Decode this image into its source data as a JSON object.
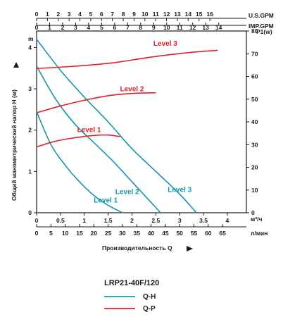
{
  "chart_data": {
    "type": "line",
    "title": "",
    "model": "LRP21-40F/120",
    "xlabel": "Производительность Q",
    "ylabel_left": "Общий манометрический напор H (м)",
    "ylabel_left_unit": "m",
    "ylabel_right": "P1(w)",
    "x_main_unit": "м³/ч",
    "x_lpm_unit": "л/мин",
    "x_usgpm_unit": "U.S.GPM",
    "x_impgpm_unit": "IMP.GPM",
    "xlim": [
      0,
      4.4
    ],
    "ylim_left": [
      0,
      4.4
    ],
    "ylim_right": [
      0,
      80
    ],
    "x_main_ticks": [
      "0",
      "0.5",
      "1",
      "1.5",
      "2",
      "2.5",
      "3",
      "3.5",
      "4"
    ],
    "x_lpm_ticks": [
      "0",
      "5",
      "10",
      "15",
      "20",
      "25",
      "30",
      "35",
      "40",
      "45",
      "50",
      "55",
      "60",
      "65"
    ],
    "x_usgpm_ticks": [
      "0",
      "1",
      "2",
      "3",
      "4",
      "5",
      "6",
      "7",
      "8",
      "9",
      "10",
      "11",
      "12",
      "13",
      "14",
      "15",
      "16"
    ],
    "x_impgpm_ticks": [
      "0",
      "1",
      "2",
      "3",
      "4",
      "5",
      "6",
      "7",
      "8",
      "9",
      "10",
      "11",
      "12",
      "13",
      "14"
    ],
    "y_left_ticks": [
      "0",
      "1",
      "2",
      "3",
      "4"
    ],
    "y_right_ticks": [
      "0",
      "10",
      "20",
      "30",
      "40",
      "50",
      "60",
      "70",
      "80"
    ],
    "qh_series": [
      {
        "name": "Level 1",
        "x": [
          0,
          0.3,
          0.6,
          0.9,
          1.2,
          1.5,
          1.8
        ],
        "y": [
          2.45,
          1.65,
          1.15,
          0.75,
          0.42,
          0.18,
          0
        ]
      },
      {
        "name": "Level 2",
        "x": [
          0,
          0.4,
          0.8,
          1.2,
          1.6,
          2.0,
          2.4,
          2.6
        ],
        "y": [
          3.55,
          2.75,
          2.15,
          1.7,
          1.25,
          0.75,
          0.25,
          0
        ]
      },
      {
        "name": "Level 3",
        "x": [
          0,
          0.5,
          1.0,
          1.5,
          2.0,
          2.5,
          3.0,
          3.35
        ],
        "y": [
          4.2,
          3.45,
          2.8,
          2.2,
          1.55,
          1.0,
          0.45,
          0
        ]
      }
    ],
    "qp_series": [
      {
        "name": "Level 1",
        "x": [
          0,
          0.4,
          0.8,
          1.2,
          1.5,
          1.75
        ],
        "p": [
          29,
          31.5,
          33,
          34,
          34.2,
          33.5
        ]
      },
      {
        "name": "Level 2",
        "x": [
          0,
          0.5,
          1.0,
          1.5,
          2.0,
          2.5
        ],
        "p": [
          44,
          47,
          49.5,
          51.5,
          52.5,
          52.8
        ]
      },
      {
        "name": "Level 3",
        "x": [
          0,
          0.8,
          1.6,
          2.4,
          3.2,
          3.8
        ],
        "p": [
          63.5,
          64.5,
          66,
          68.5,
          70.5,
          71.5
        ]
      }
    ],
    "legend": [
      {
        "label": "Q-H",
        "color": "#1596a6"
      },
      {
        "label": "Q-P",
        "color": "#e0202a"
      }
    ],
    "colors": {
      "qh": "#1596a6",
      "qp": "#e0202a",
      "axis": "#1a1a1a"
    }
  }
}
